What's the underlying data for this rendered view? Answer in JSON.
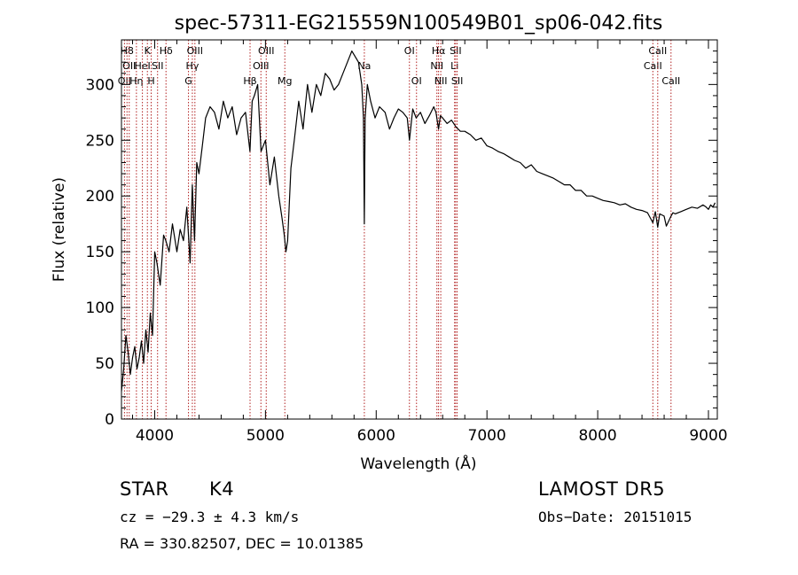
{
  "chart_data": {
    "type": "line",
    "title": "spec-57311-EG215559N100549B01_sp06-042.fits",
    "xlabel": "Wavelength (Å)",
    "ylabel": "Flux (relative)",
    "xlim": [
      3700,
      9080
    ],
    "ylim": [
      0,
      340
    ],
    "xticks": [
      4000,
      5000,
      6000,
      7000,
      8000,
      9000
    ],
    "yticks": [
      0,
      50,
      100,
      150,
      200,
      250,
      300
    ],
    "grid": false,
    "line_color": "#000000",
    "marker_color": "#b22222",
    "series": [
      {
        "x": [
          3700,
          3720,
          3740,
          3760,
          3780,
          3800,
          3820,
          3840,
          3860,
          3880,
          3900,
          3920,
          3940,
          3960,
          3980,
          4000,
          4020,
          4050,
          4080,
          4100,
          4130,
          4160,
          4200,
          4230,
          4260,
          4290,
          4320,
          4340,
          4360,
          4380,
          4400,
          4430,
          4460,
          4500,
          4540,
          4580,
          4620,
          4660,
          4700,
          4740,
          4780,
          4820,
          4860,
          4880,
          4900,
          4930,
          4960,
          5000,
          5040,
          5080,
          5120,
          5150,
          5170,
          5185,
          5200,
          5230,
          5260,
          5300,
          5340,
          5380,
          5420,
          5460,
          5500,
          5540,
          5580,
          5620,
          5660,
          5700,
          5740,
          5780,
          5810,
          5840,
          5870,
          5885,
          5893,
          5900,
          5920,
          5950,
          5990,
          6030,
          6080,
          6120,
          6160,
          6200,
          6240,
          6280,
          6300,
          6330,
          6360,
          6400,
          6440,
          6480,
          6520,
          6540,
          6563,
          6580,
          6600,
          6640,
          6680,
          6720,
          6760,
          6800,
          6850,
          6900,
          6950,
          7000,
          7050,
          7100,
          7150,
          7200,
          7250,
          7300,
          7350,
          7400,
          7450,
          7500,
          7550,
          7600,
          7650,
          7700,
          7750,
          7800,
          7850,
          7900,
          7950,
          8000,
          8050,
          8100,
          8150,
          8200,
          8250,
          8300,
          8350,
          8400,
          8450,
          8498,
          8520,
          8542,
          8560,
          8600,
          8620,
          8662,
          8680,
          8700,
          8750,
          8800,
          8850,
          8900,
          8950,
          8980,
          9000,
          9020,
          9040,
          9060
        ],
        "y": [
          25,
          45,
          75,
          60,
          40,
          55,
          65,
          45,
          55,
          70,
          50,
          80,
          60,
          95,
          75,
          150,
          140,
          120,
          165,
          160,
          150,
          175,
          150,
          170,
          160,
          190,
          140,
          210,
          160,
          230,
          220,
          245,
          270,
          280,
          275,
          260,
          285,
          270,
          280,
          255,
          270,
          275,
          240,
          285,
          290,
          300,
          240,
          250,
          210,
          235,
          200,
          180,
          165,
          150,
          160,
          225,
          250,
          285,
          260,
          300,
          275,
          300,
          290,
          310,
          305,
          295,
          300,
          310,
          320,
          330,
          325,
          320,
          300,
          270,
          175,
          270,
          300,
          285,
          270,
          280,
          275,
          260,
          270,
          278,
          275,
          270,
          250,
          278,
          270,
          275,
          265,
          272,
          280,
          275,
          260,
          272,
          270,
          265,
          268,
          262,
          258,
          258,
          255,
          250,
          252,
          245,
          243,
          240,
          238,
          235,
          232,
          230,
          225,
          228,
          222,
          220,
          218,
          216,
          213,
          210,
          210,
          205,
          205,
          200,
          200,
          198,
          196,
          195,
          194,
          192,
          193,
          190,
          188,
          187,
          185,
          176,
          186,
          172,
          184,
          182,
          173,
          182,
          185,
          184,
          186,
          188,
          190,
          189,
          192,
          190,
          188,
          192,
          190,
          194
        ]
      }
    ],
    "line_markers": [
      {
        "x": 3727,
        "label": "OII",
        "row": 2
      },
      {
        "x": 3750,
        "label": "H8",
        "row": 0
      },
      {
        "x": 3770,
        "label": "OII",
        "row": 1
      },
      {
        "x": 3835,
        "label": "Hη",
        "row": 2
      },
      {
        "x": 3889,
        "label": "HeI",
        "row": 1
      },
      {
        "x": 3934,
        "label": "K",
        "row": 0
      },
      {
        "x": 3968,
        "label": "H",
        "row": 2
      },
      {
        "x": 4026,
        "label": "SII",
        "row": 1
      },
      {
        "x": 4102,
        "label": "Hδ",
        "row": 0
      },
      {
        "x": 4305,
        "label": "G",
        "row": 2
      },
      {
        "x": 4340,
        "label": "Hγ",
        "row": 1
      },
      {
        "x": 4363,
        "label": "OIII",
        "row": 0
      },
      {
        "x": 4861,
        "label": "Hβ",
        "row": 2
      },
      {
        "x": 4959,
        "label": "OIII",
        "row": 1
      },
      {
        "x": 5007,
        "label": "OIII",
        "row": 0
      },
      {
        "x": 5175,
        "label": "Mg",
        "row": 2
      },
      {
        "x": 5893,
        "label": "Na",
        "row": 1
      },
      {
        "x": 6300,
        "label": "OI",
        "row": 0
      },
      {
        "x": 6364,
        "label": "OI",
        "row": 2
      },
      {
        "x": 6548,
        "label": "NII",
        "row": 1
      },
      {
        "x": 6563,
        "label": "Hα",
        "row": 0
      },
      {
        "x": 6583,
        "label": "NII",
        "row": 2
      },
      {
        "x": 6708,
        "label": "Li",
        "row": 1
      },
      {
        "x": 6717,
        "label": "SII",
        "row": 0
      },
      {
        "x": 6731,
        "label": "SII",
        "row": 2
      },
      {
        "x": 8498,
        "label": "CaII",
        "row": 1
      },
      {
        "x": 8542,
        "label": "CaII",
        "row": 0
      },
      {
        "x": 8662,
        "label": "CaII",
        "row": 2
      }
    ]
  },
  "info": {
    "object_class": "STAR",
    "subclass": "K4",
    "survey": "LAMOST DR5",
    "cz": "cz = −29.3 ± 4.3 km/s",
    "obs_date": "Obs−Date: 20151015",
    "coords": "RA = 330.82507, DEC =  10.01385"
  }
}
